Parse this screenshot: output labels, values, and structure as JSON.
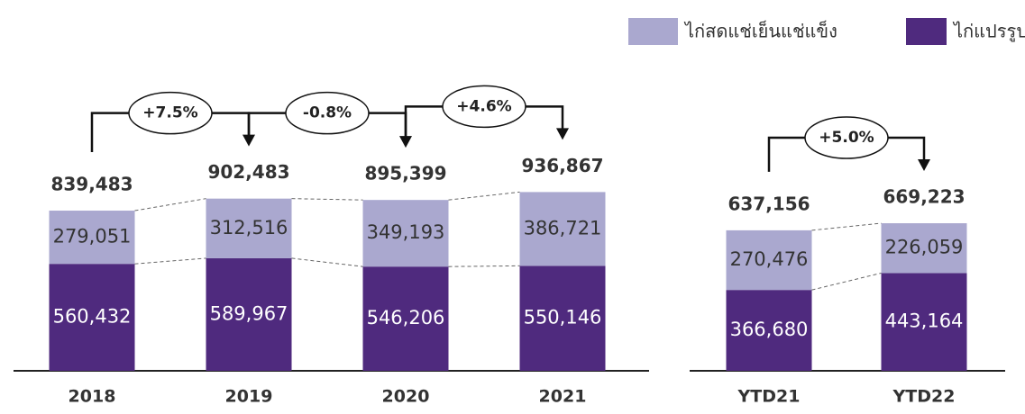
{
  "chart_data": [
    {
      "type": "bar",
      "stacked": true,
      "categories": [
        "2018",
        "2019",
        "2020",
        "2021"
      ],
      "series": [
        {
          "name": "ไก่แปรรูป",
          "color": "#4f2a7e",
          "values": [
            560432,
            589967,
            546206,
            550146
          ],
          "value_labels": [
            "560,432",
            "589,967",
            "546,206",
            "550,146"
          ]
        },
        {
          "name": "ไก่สดแช่เย็นแช่แข็ง",
          "color": "#aaa8cf",
          "values": [
            279051,
            312516,
            349193,
            386721
          ],
          "value_labels": [
            "279,051",
            "312,516",
            "349,193",
            "386,721"
          ]
        }
      ],
      "totals": [
        839483,
        902483,
        895399,
        936867
      ],
      "total_labels": [
        "839,483",
        "902,483",
        "895,399",
        "936,867"
      ],
      "annotations": [
        "+7.5%",
        "-0.8%",
        "+4.6%"
      ],
      "ylim": [
        0,
        1000000
      ]
    },
    {
      "type": "bar",
      "stacked": true,
      "categories": [
        "YTD21",
        "YTD22"
      ],
      "series": [
        {
          "color": "#4f2a7e",
          "values": [
            366680,
            443164
          ],
          "value_labels": [
            "366,680",
            "443,164"
          ]
        },
        {
          "color": "#aaa8cf",
          "values": [
            270476,
            226059
          ],
          "value_labels": [
            "270,476",
            "226,059"
          ]
        }
      ],
      "totals": [
        637156,
        669223
      ],
      "total_labels": [
        "637,156",
        "669,223"
      ],
      "annotations": [
        "+5.0%"
      ],
      "ylim": [
        0,
        1000000
      ]
    }
  ]
}
